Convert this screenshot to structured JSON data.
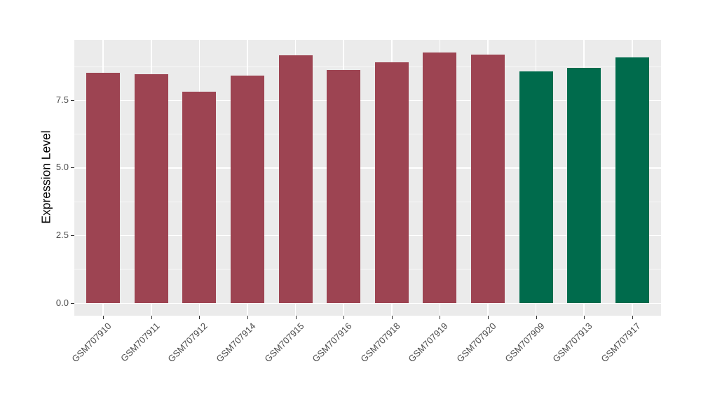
{
  "figure": {
    "background": "#FFFFFF",
    "panel_background": "#EBEBEB",
    "gridline_color": "#FFFFFF",
    "tick_mark_color": "#333333",
    "tick_label_color": "#4D4D4D",
    "axis_title_color": "#000000",
    "bar_color_red": "#9D4452",
    "bar_color_green": "#006B4C"
  },
  "chart_data": {
    "type": "bar",
    "title": "",
    "xlabel": "",
    "ylabel": "Expression Level",
    "categories": [
      "GSM707910",
      "GSM707911",
      "GSM707912",
      "GSM707914",
      "GSM707915",
      "GSM707916",
      "GSM707918",
      "GSM707919",
      "GSM707920",
      "GSM707909",
      "GSM707913",
      "GSM707917"
    ],
    "values": [
      8.5,
      8.45,
      7.82,
      8.4,
      9.16,
      8.62,
      8.9,
      9.27,
      9.17,
      8.56,
      8.7,
      9.09
    ],
    "bar_colors": [
      "#9D4452",
      "#9D4452",
      "#9D4452",
      "#9D4452",
      "#9D4452",
      "#9D4452",
      "#9D4452",
      "#9D4452",
      "#9D4452",
      "#006B4C",
      "#006B4C",
      "#006B4C"
    ],
    "y_tick_labels": [
      "0.0",
      "2.5",
      "5.0",
      "7.5"
    ],
    "y_tick_values": [
      0,
      2.5,
      5,
      7.5
    ],
    "y_minor_values": [
      1.25,
      3.75,
      6.25,
      8.75
    ],
    "ylim": [
      0,
      9.73
    ],
    "grid": "major-and-minor-white-on-grey",
    "legend": "none"
  }
}
